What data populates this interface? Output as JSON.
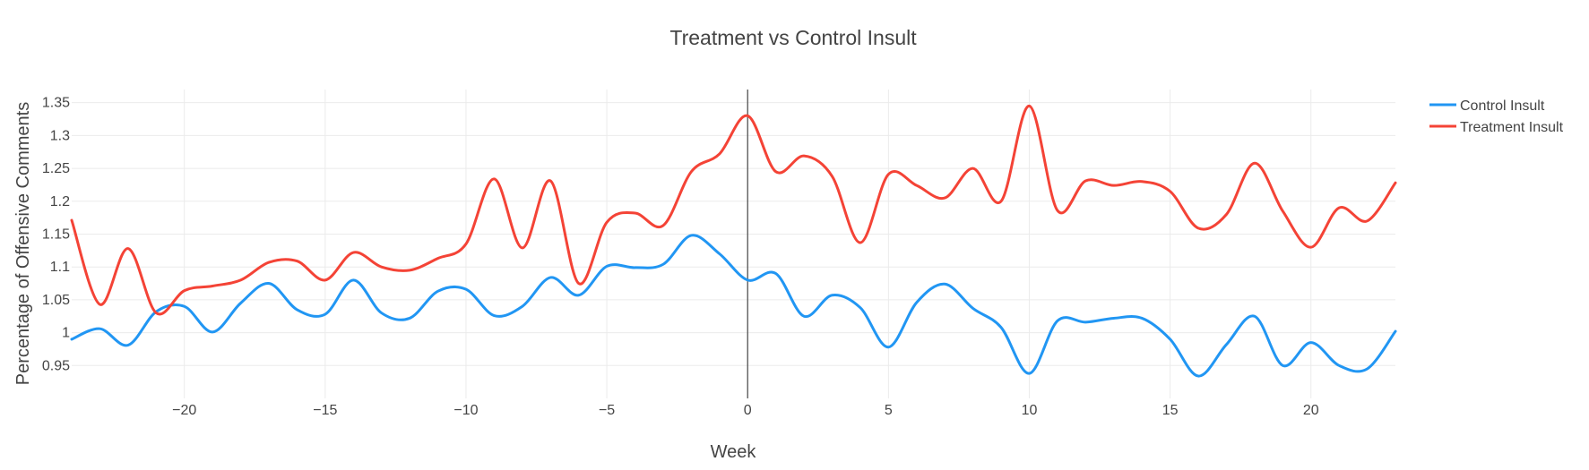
{
  "chart_data": {
    "type": "line",
    "title": "Treatment vs Control Insult",
    "xlabel": "Week",
    "ylabel": "Percentage of Offensive Comments",
    "xlim": [
      -24,
      23
    ],
    "ylim": [
      0.9,
      1.37
    ],
    "xticks": [
      -20,
      -15,
      -10,
      -5,
      0,
      5,
      10,
      15,
      20
    ],
    "xtick_labels": [
      "−20",
      "−15",
      "−10",
      "−5",
      "0",
      "5",
      "10",
      "15",
      "20"
    ],
    "yticks": [
      0.95,
      1,
      1.05,
      1.1,
      1.15,
      1.2,
      1.25,
      1.3,
      1.35
    ],
    "ytick_labels": [
      "0.95",
      "1",
      "1.05",
      "1.1",
      "1.15",
      "1.2",
      "1.25",
      "1.3",
      "1.35"
    ],
    "vertical_line_x": 0,
    "grid": true,
    "legend_position": "top-right",
    "x": [
      -24,
      -23,
      -22,
      -21,
      -20,
      -19,
      -18,
      -17,
      -16,
      -15,
      -14,
      -13,
      -12,
      -11,
      -10,
      -9,
      -8,
      -7,
      -6,
      -5,
      -4,
      -3,
      -2,
      -1,
      0,
      1,
      2,
      3,
      4,
      5,
      6,
      7,
      8,
      9,
      10,
      11,
      12,
      13,
      14,
      15,
      16,
      17,
      18,
      19,
      20,
      21,
      22,
      23
    ],
    "series": [
      {
        "name": "Control Insult",
        "color": "#2196f3",
        "values": [
          0.99,
          1.006,
          0.981,
          1.032,
          1.04,
          1.001,
          1.045,
          1.075,
          1.035,
          1.028,
          1.08,
          1.03,
          1.022,
          1.063,
          1.066,
          1.026,
          1.04,
          1.084,
          1.057,
          1.101,
          1.099,
          1.104,
          1.148,
          1.12,
          1.08,
          1.09,
          1.025,
          1.057,
          1.038,
          0.978,
          1.046,
          1.074,
          1.037,
          1.008,
          0.938,
          1.018,
          1.016,
          1.022,
          1.022,
          0.99,
          0.934,
          0.982,
          1.025,
          0.95,
          0.985,
          0.95,
          0.945,
          1.002
        ]
      },
      {
        "name": "Treatment Insult",
        "color": "#f44336",
        "values": [
          1.171,
          1.043,
          1.128,
          1.03,
          1.064,
          1.071,
          1.08,
          1.107,
          1.109,
          1.08,
          1.122,
          1.1,
          1.095,
          1.113,
          1.135,
          1.234,
          1.129,
          1.231,
          1.075,
          1.168,
          1.182,
          1.163,
          1.245,
          1.272,
          1.33,
          1.245,
          1.269,
          1.238,
          1.137,
          1.241,
          1.224,
          1.205,
          1.25,
          1.2,
          1.345,
          1.186,
          1.231,
          1.224,
          1.23,
          1.215,
          1.159,
          1.18,
          1.258,
          1.185,
          1.13,
          1.19,
          1.17,
          1.228
        ]
      }
    ]
  }
}
